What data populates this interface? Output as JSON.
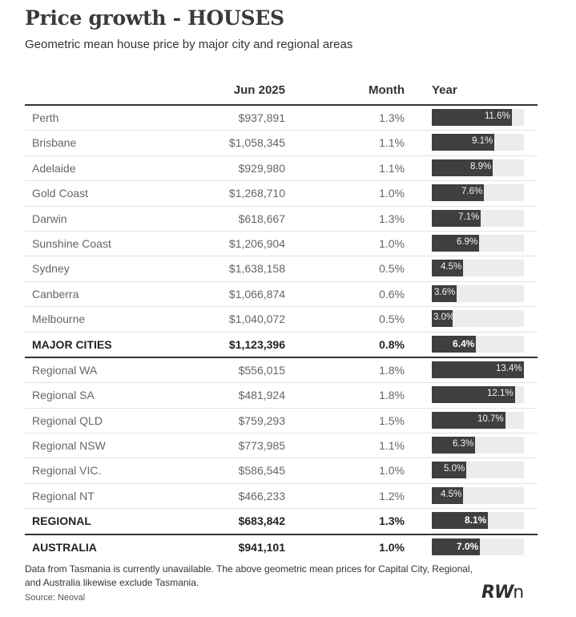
{
  "title": "Price growth - HOUSES",
  "subtitle": "Geometric mean house price by major city and regional areas",
  "headers": {
    "name": "",
    "price": "Jun 2025",
    "month": "Month",
    "year": "Year"
  },
  "rows": [
    {
      "name": "Perth",
      "price": "$937,891",
      "month": "1.3%",
      "year": 11.6,
      "year_label": "11.6%",
      "summary": false
    },
    {
      "name": "Brisbane",
      "price": "$1,058,345",
      "month": "1.1%",
      "year": 9.1,
      "year_label": "9.1%",
      "summary": false
    },
    {
      "name": "Adelaide",
      "price": "$929,980",
      "month": "1.1%",
      "year": 8.9,
      "year_label": "8.9%",
      "summary": false
    },
    {
      "name": "Gold Coast",
      "price": "$1,268,710",
      "month": "1.0%",
      "year": 7.6,
      "year_label": "7.6%",
      "summary": false
    },
    {
      "name": "Darwin",
      "price": "$618,667",
      "month": "1.3%",
      "year": 7.1,
      "year_label": "7.1%",
      "summary": false
    },
    {
      "name": "Sunshine Coast",
      "price": "$1,206,904",
      "month": "1.0%",
      "year": 6.9,
      "year_label": "6.9%",
      "summary": false
    },
    {
      "name": "Sydney",
      "price": "$1,638,158",
      "month": "0.5%",
      "year": 4.5,
      "year_label": "4.5%",
      "summary": false
    },
    {
      "name": "Canberra",
      "price": "$1,066,874",
      "month": "0.6%",
      "year": 3.6,
      "year_label": "3.6%",
      "summary": false
    },
    {
      "name": "Melbourne",
      "price": "$1,040,072",
      "month": "0.5%",
      "year": 3.0,
      "year_label": "3.0%",
      "summary": false
    },
    {
      "name": "MAJOR CITIES",
      "price": "$1,123,396",
      "month": "0.8%",
      "year": 6.4,
      "year_label": "6.4%",
      "summary": true
    },
    {
      "name": "Regional WA",
      "price": "$556,015",
      "month": "1.8%",
      "year": 13.4,
      "year_label": "13.4%",
      "summary": false
    },
    {
      "name": "Regional SA",
      "price": "$481,924",
      "month": "1.8%",
      "year": 12.1,
      "year_label": "12.1%",
      "summary": false
    },
    {
      "name": "Regional QLD",
      "price": "$759,293",
      "month": "1.5%",
      "year": 10.7,
      "year_label": "10.7%",
      "summary": false
    },
    {
      "name": "Regional NSW",
      "price": "$773,985",
      "month": "1.1%",
      "year": 6.3,
      "year_label": "6.3%",
      "summary": false
    },
    {
      "name": "Regional VIC.",
      "price": "$586,545",
      "month": "1.0%",
      "year": 5.0,
      "year_label": "5.0%",
      "summary": false
    },
    {
      "name": "Regional NT",
      "price": "$466,233",
      "month": "1.2%",
      "year": 4.5,
      "year_label": "4.5%",
      "summary": false
    },
    {
      "name": "REGIONAL",
      "price": "$683,842",
      "month": "1.3%",
      "year": 8.1,
      "year_label": "8.1%",
      "summary": true
    },
    {
      "name": "AUSTRALIA",
      "price": "$941,101",
      "month": "1.0%",
      "year": 7.0,
      "year_label": "7.0%",
      "summary": true
    }
  ],
  "chart_data": {
    "type": "table",
    "columns": [
      "Jun 2025",
      "Month",
      "Year"
    ],
    "bar_column": "Year",
    "bar_max": 13.4,
    "colors": {
      "bar": "#3f3f3f",
      "track": "#ececec",
      "rule": "#333333"
    }
  },
  "note": "Data from Tasmania is currently unavailable. The above geometric mean prices for Capital City, Regional, and Australia likewise exclude Tasmania.",
  "source": "Source: Neoval",
  "logo": {
    "text": "RWn",
    "kind": "brand-logo"
  }
}
